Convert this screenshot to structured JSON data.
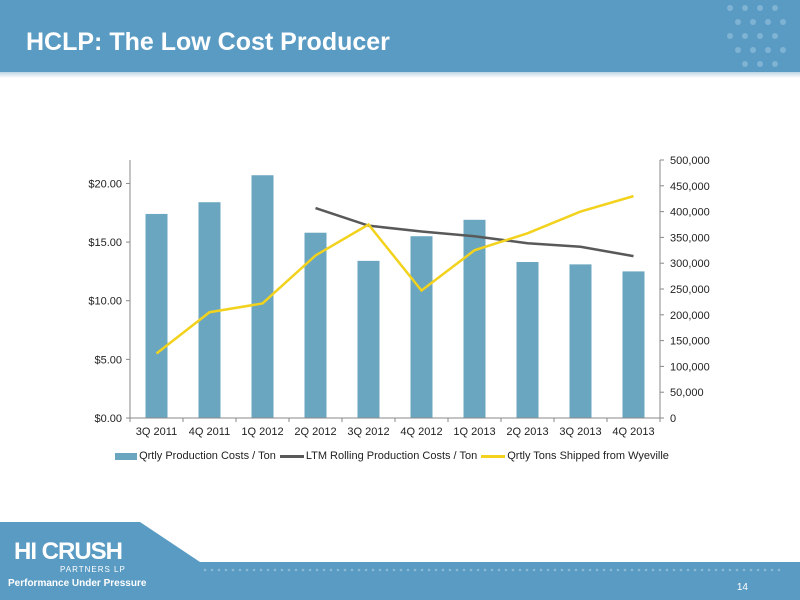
{
  "slide": {
    "title": "HCLP: The Low Cost Producer",
    "page_number": "14",
    "logo": {
      "name": "HI CRUSH",
      "sub": "PARTNERS LP",
      "tagline": "Performance Under Pressure"
    }
  },
  "colors": {
    "header": "#5a9bc3",
    "bar": "#6aa6bf",
    "ltm_line": "#595959",
    "shipped_line": "#f2d21d"
  },
  "chart_data": {
    "type": "bar",
    "categories": [
      "3Q 2011",
      "4Q 2011",
      "1Q 2012",
      "2Q 2012",
      "3Q 2012",
      "4Q 2012",
      "1Q 2013",
      "2Q 2013",
      "3Q 2013",
      "4Q 2013"
    ],
    "y_left": {
      "ylim": [
        0,
        22.0
      ],
      "ticks": [
        0,
        5,
        10,
        15,
        20
      ],
      "tick_labels": [
        "$0.00",
        "$5.00",
        "$10.00",
        "$15.00",
        "$20.00"
      ]
    },
    "y_right": {
      "ylim": [
        0,
        500000
      ],
      "ticks": [
        0,
        50000,
        100000,
        150000,
        200000,
        250000,
        300000,
        350000,
        400000,
        450000,
        500000
      ],
      "tick_labels": [
        "0",
        "50,000",
        "100,000",
        "150,000",
        "200,000",
        "250,000",
        "300,000",
        "350,000",
        "400,000",
        "450,000",
        "500,000"
      ]
    },
    "series": [
      {
        "name": "Qrtly Production Costs / Ton",
        "type": "bar",
        "axis": "left",
        "values": [
          17.4,
          18.4,
          20.7,
          15.8,
          13.4,
          15.5,
          16.9,
          13.3,
          13.1,
          12.5
        ]
      },
      {
        "name": "LTM Rolling Production Costs / Ton",
        "type": "line",
        "axis": "left",
        "values": [
          null,
          null,
          null,
          17.9,
          16.4,
          15.9,
          15.5,
          14.9,
          14.6,
          13.8
        ]
      },
      {
        "name": "Qrtly Tons Shipped from Wyeville",
        "type": "line",
        "axis": "right",
        "values": [
          125000,
          205000,
          222000,
          315000,
          375000,
          247000,
          325000,
          358000,
          400000,
          430000
        ]
      }
    ],
    "legend_position": "bottom",
    "grid": false
  }
}
